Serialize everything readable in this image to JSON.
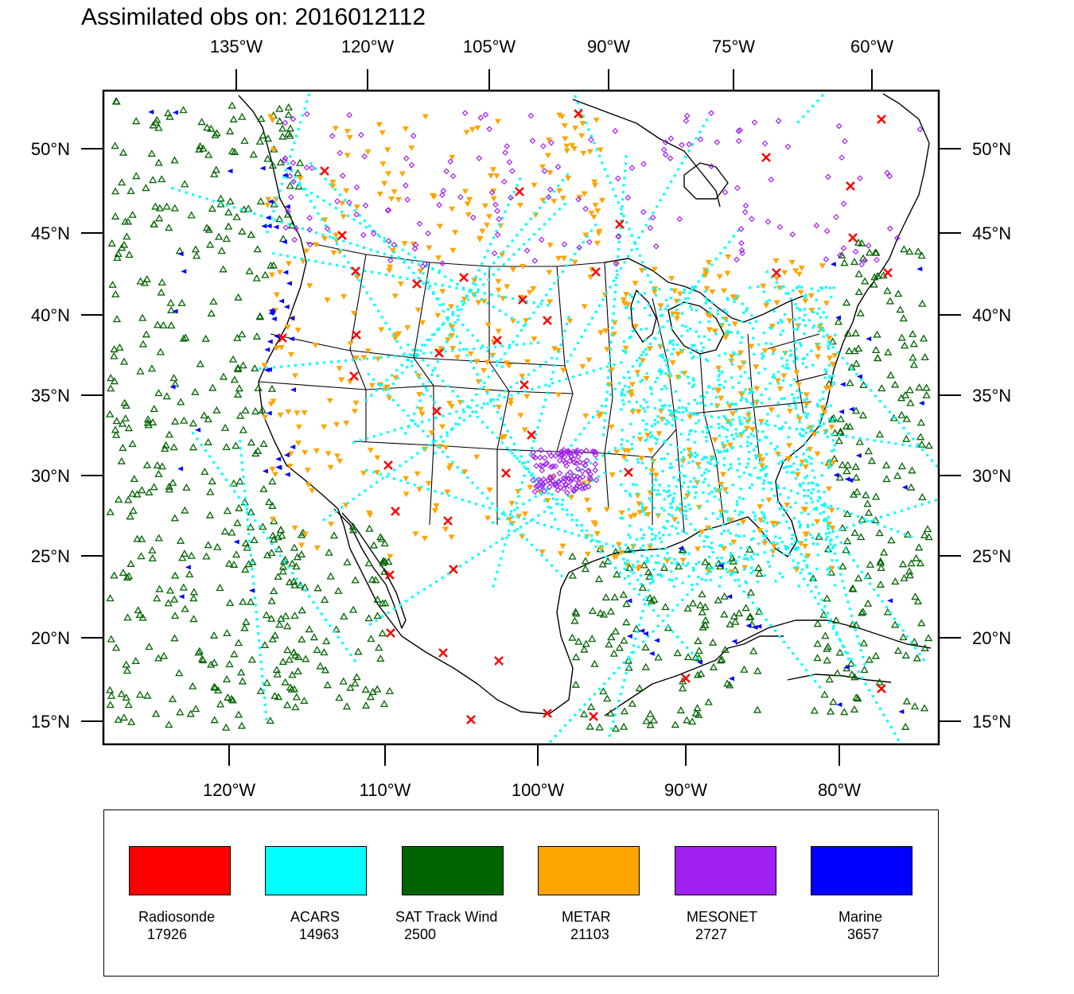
{
  "title": "Assimilated obs on: 2016012112",
  "top_lon_labels": [
    "135°W",
    "120°W",
    "105°W",
    "90°W",
    "75°W",
    "60°W"
  ],
  "bottom_lon_labels": [
    "120°W",
    "110°W",
    "100°W",
    "90°W",
    "80°W"
  ],
  "lat_labels": [
    "50°N",
    "45°N",
    "40°N",
    "35°N",
    "30°N",
    "25°N",
    "20°N",
    "15°N"
  ],
  "legend": [
    {
      "name": "Radiosonde",
      "count": "17926",
      "color": "#ff0000"
    },
    {
      "name": "ACARS",
      "count": "14963",
      "color": "#00ffff"
    },
    {
      "name": "SAT Track Wind",
      "count": "2500",
      "color": "#006400"
    },
    {
      "name": "METAR",
      "count": "21103",
      "color": "#ffa500"
    },
    {
      "name": "MESONET",
      "count": "2727",
      "color": "#a020f0"
    },
    {
      "name": "Marine",
      "count": "3657",
      "color": "#0000ff"
    }
  ],
  "markers": {
    "radiosonde": "x-mark",
    "acars": "square-dot",
    "sat_track_wind": "open-triangle",
    "metar": "filled-inverted-triangle",
    "mesonet": "open-diamond",
    "marine": "filled-left-triangle"
  }
}
